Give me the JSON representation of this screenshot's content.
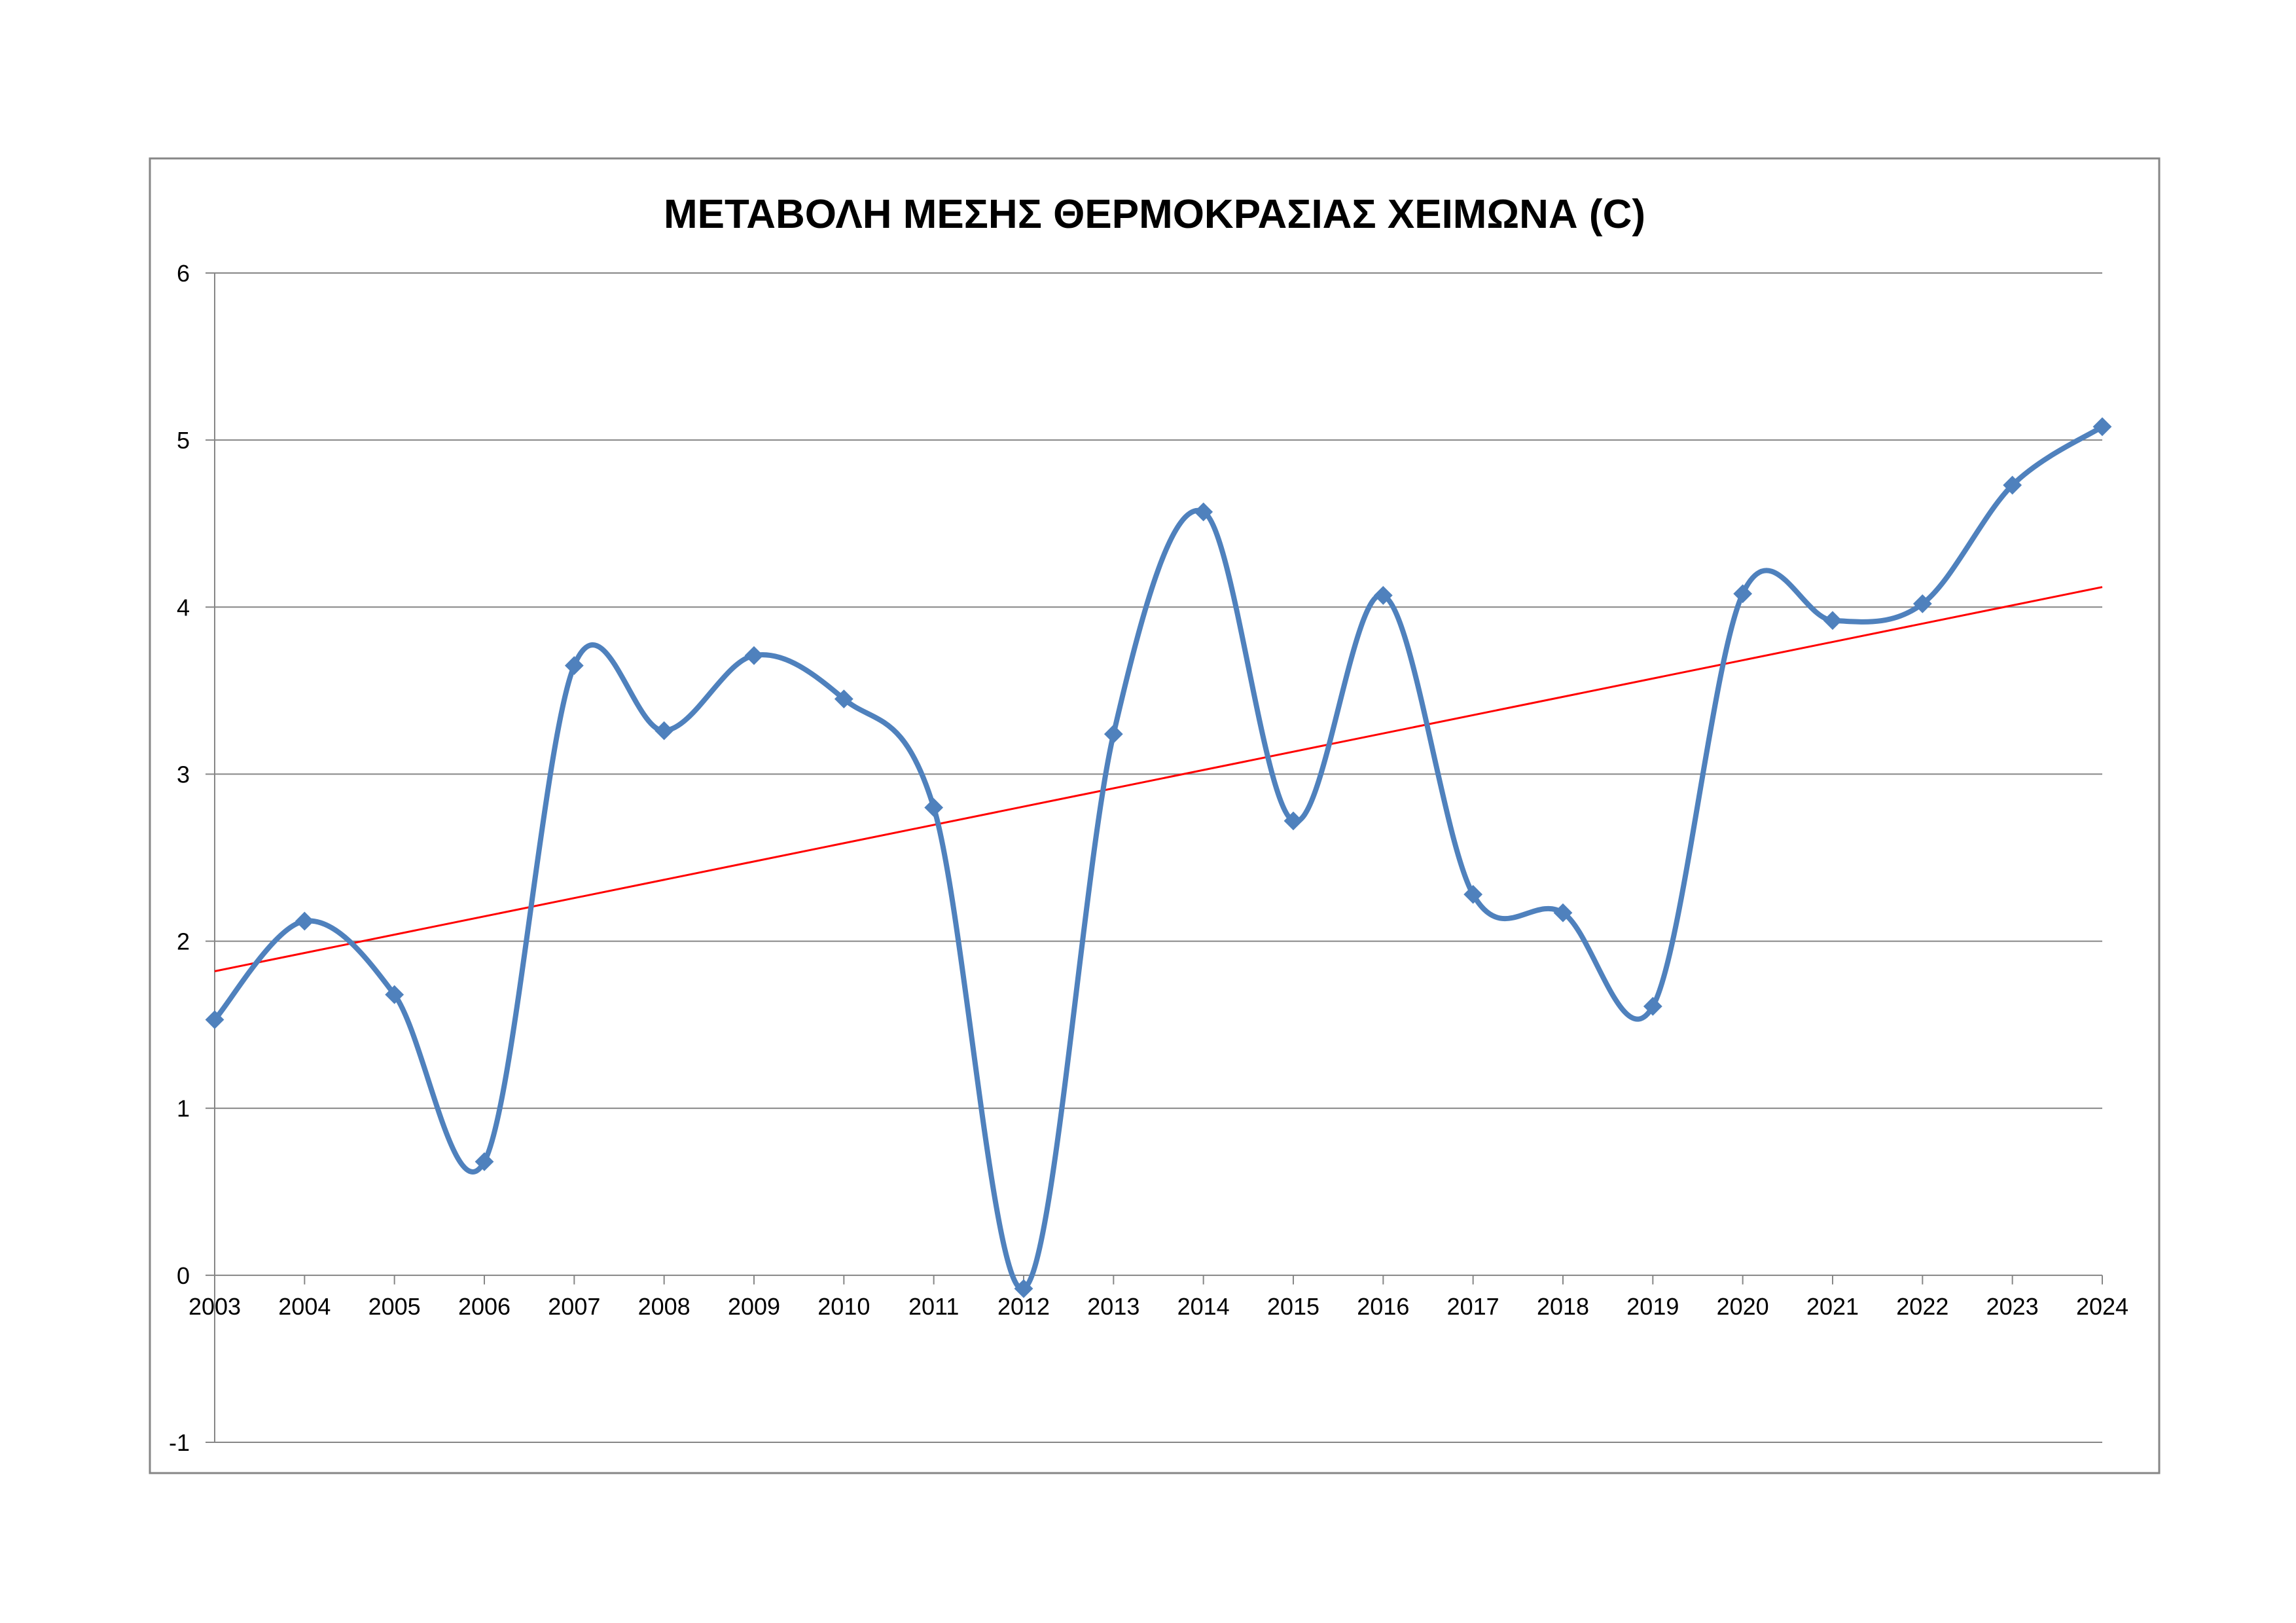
{
  "chart_data": {
    "type": "line",
    "title": "ΜΕΤΑΒΟΛΗ ΜΕΣΗΣ ΘΕΡΜΟΚΡΑΣΙΑΣ ΧΕΙΜΩΝΑ (C)",
    "xlabel": "",
    "ylabel": "",
    "categories": [
      "2003",
      "2004",
      "2005",
      "2006",
      "2007",
      "2008",
      "2009",
      "2010",
      "2011",
      "2012",
      "2013",
      "2014",
      "2015",
      "2016",
      "2017",
      "2018",
      "2019",
      "2020",
      "2021",
      "2022",
      "2023",
      "2024"
    ],
    "ylim": [
      -1,
      6
    ],
    "yticks": [
      "-1",
      "0",
      "1",
      "2",
      "3",
      "4",
      "5",
      "6"
    ],
    "grid": true,
    "legend": "none",
    "series": [
      {
        "name": "",
        "color": "#4F81BD",
        "smooth": true,
        "marker": "diamond",
        "values": [
          1.53,
          2.12,
          1.68,
          0.68,
          3.65,
          3.26,
          3.71,
          3.45,
          2.8,
          -0.08,
          3.24,
          4.57,
          2.72,
          4.07,
          2.28,
          2.17,
          1.61,
          4.08,
          3.92,
          4.02,
          4.73,
          5.08
        ]
      }
    ],
    "trendline": {
      "type": "linear",
      "color": "#FF0000",
      "start": 1.82,
      "end": 4.12
    }
  }
}
